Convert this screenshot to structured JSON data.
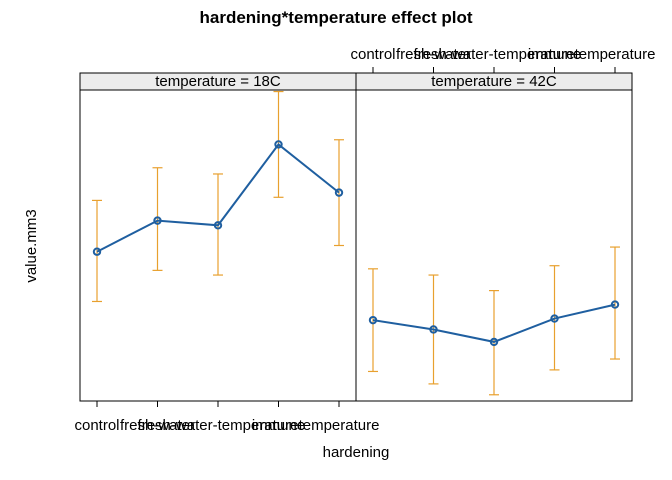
{
  "chart_data": {
    "type": "line",
    "title": "hardening*temperature effect plot",
    "xlabel": "hardening",
    "ylabel": "value.mm3",
    "categories": [
      "control",
      "fresh-water",
      "fresh-water-temperature",
      "immune",
      "temperature"
    ],
    "ylim": [
      0,
      100
    ],
    "y_ticks_shown": false,
    "grid": false,
    "legend": "none",
    "colors": {
      "line": "#1f5fa0",
      "error_bars": "#e8a02e",
      "strip": "#ececec"
    },
    "panels": [
      {
        "strip_label": "temperature = 18C",
        "x_ticks_side": "bottom",
        "values": [
          48,
          58,
          56.5,
          82.5,
          67
        ],
        "lower": [
          32,
          42,
          40.5,
          65.5,
          50
        ],
        "upper": [
          64.5,
          75,
          73,
          99.5,
          84
        ]
      },
      {
        "strip_label": "temperature = 42C",
        "x_ticks_side": "top",
        "values": [
          26,
          23,
          19,
          26.5,
          31
        ],
        "lower": [
          9.5,
          5.5,
          2,
          10,
          13.5
        ],
        "upper": [
          42.5,
          40.5,
          35.5,
          43.5,
          49.5
        ]
      }
    ]
  }
}
